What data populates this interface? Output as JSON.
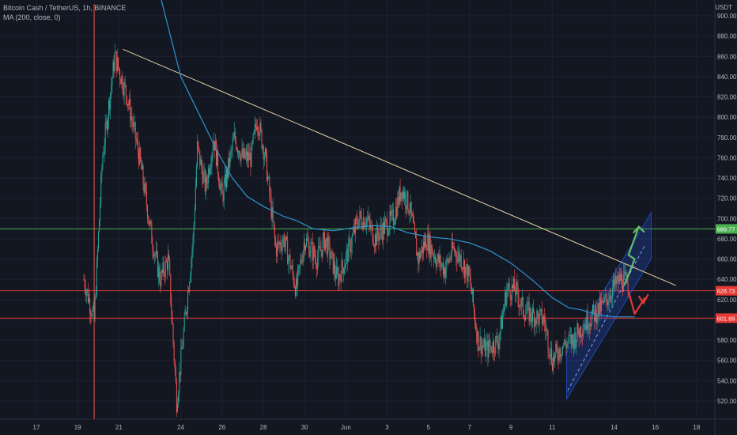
{
  "header": {
    "title": "Bitcoin Cash / TetherUS, 1h, BINANCE",
    "indicator": "MA (200, close, 0)",
    "currency": "USDT"
  },
  "colors": {
    "background": "#131722",
    "grid": "#1e2230",
    "up": "#26a69a",
    "down": "#ef5350",
    "ma": "#2f95d0",
    "trendline": "#e8d2a6",
    "green_level": "#4caf50",
    "red_level": "#e53935",
    "axis_text": "#b2b5be",
    "channel": "#2962ff"
  },
  "chart_data": {
    "type": "candlestick",
    "title": "Bitcoin Cash / TetherUS, 1h, BINANCE",
    "xlabel": "",
    "ylabel": "",
    "ylim": [
      509,
      915
    ],
    "x_ticks": [
      "17",
      "19",
      "21",
      "24",
      "26",
      "28",
      "30",
      "Jun",
      "3",
      "5",
      "7",
      "9",
      "11",
      "14",
      "16",
      "18"
    ],
    "y_ticks": [
      520,
      540,
      560,
      580,
      600,
      620,
      640,
      660,
      680,
      700,
      720,
      740,
      760,
      780,
      800,
      820,
      840,
      860,
      880,
      900
    ],
    "grid": true,
    "series": [
      {
        "name": "BCHUSDT",
        "type": "candlestick",
        "approx_path": [
          [
            19.3,
            640
          ],
          [
            19.8,
            600
          ],
          [
            20.2,
            760
          ],
          [
            20.8,
            860
          ],
          [
            21.4,
            820
          ],
          [
            22.0,
            760
          ],
          [
            22.6,
            680
          ],
          [
            23.0,
            640
          ],
          [
            23.4,
            660
          ],
          [
            23.8,
            520
          ],
          [
            24.0,
            560
          ],
          [
            24.6,
            680
          ],
          [
            24.8,
            770
          ],
          [
            25.2,
            730
          ],
          [
            25.6,
            780
          ],
          [
            26.0,
            720
          ],
          [
            26.6,
            780
          ],
          [
            27.0,
            760
          ],
          [
            27.4,
            760
          ],
          [
            27.7,
            800
          ],
          [
            28.1,
            760
          ],
          [
            28.6,
            670
          ],
          [
            29.0,
            680
          ],
          [
            29.6,
            630
          ],
          [
            30.0,
            680
          ],
          [
            30.6,
            660
          ],
          [
            31.0,
            680
          ],
          [
            31.6,
            640
          ],
          [
            32.0,
            660
          ],
          [
            32.6,
            700
          ],
          [
            33.0,
            700
          ],
          [
            33.4,
            680
          ],
          [
            33.8,
            690
          ],
          [
            34.3,
            700
          ],
          [
            34.7,
            730
          ],
          [
            35.1,
            710
          ],
          [
            35.5,
            660
          ],
          [
            35.9,
            680
          ],
          [
            36.4,
            660
          ],
          [
            36.8,
            650
          ],
          [
            37.2,
            670
          ],
          [
            37.6,
            660
          ],
          [
            38.0,
            640
          ],
          [
            38.4,
            580
          ],
          [
            38.8,
            570
          ],
          [
            39.4,
            580
          ],
          [
            39.8,
            630
          ],
          [
            40.2,
            630
          ],
          [
            40.6,
            610
          ],
          [
            41.0,
            605
          ],
          [
            41.6,
            600
          ],
          [
            42.0,
            560
          ],
          [
            42.5,
            575
          ],
          [
            43.0,
            580
          ],
          [
            43.5,
            595
          ],
          [
            44.0,
            605
          ],
          [
            44.5,
            615
          ],
          [
            44.9,
            630
          ],
          [
            45.3,
            640
          ],
          [
            45.7,
            635
          ]
        ]
      },
      {
        "name": "MA (200, close, 0)",
        "type": "line",
        "points": [
          [
            23.0,
            920
          ],
          [
            23.5,
            880
          ],
          [
            24.0,
            840
          ],
          [
            24.6,
            815
          ],
          [
            25.2,
            790
          ],
          [
            25.8,
            765
          ],
          [
            26.5,
            740
          ],
          [
            27.2,
            722
          ],
          [
            28.0,
            712
          ],
          [
            28.6,
            706
          ],
          [
            29.0,
            702
          ],
          [
            29.6,
            698
          ],
          [
            30.4,
            690
          ],
          [
            31.4,
            688
          ],
          [
            32.4,
            691
          ],
          [
            33.4,
            693
          ],
          [
            34.2,
            692
          ],
          [
            35.0,
            686
          ],
          [
            36.0,
            682
          ],
          [
            37.0,
            680
          ],
          [
            38.0,
            676
          ],
          [
            39.0,
            668
          ],
          [
            40.0,
            656
          ],
          [
            41.0,
            640
          ],
          [
            42.0,
            622
          ],
          [
            42.8,
            612
          ],
          [
            43.4,
            610
          ],
          [
            44.2,
            605
          ],
          [
            45.0,
            603
          ],
          [
            46.0,
            603
          ]
        ]
      }
    ],
    "drawings": {
      "trendline": [
        [
          21.2,
          867
        ],
        [
          48.0,
          634
        ]
      ],
      "horizontal_levels": [
        {
          "label": "689.77",
          "value": 689.77,
          "color": "green"
        },
        {
          "label": "628.73",
          "value": 628.73,
          "color": "red"
        },
        {
          "label": "601.69",
          "value": 601.69,
          "color": "red"
        }
      ],
      "channel": {
        "lower_left": [
          42.7,
          522
        ],
        "lower_right": [
          46.8,
          660
        ],
        "upper_left": [
          42.7,
          568
        ],
        "upper_right": [
          46.8,
          706
        ]
      },
      "arrows": [
        {
          "direction": "up",
          "color": "green",
          "points": [
            [
              45.5,
              634
            ],
            [
              46.0,
              660
            ],
            [
              45.7,
              664
            ],
            [
              46.2,
              692
            ]
          ]
        },
        {
          "direction": "down",
          "color": "red",
          "points": [
            [
              45.7,
              628
            ],
            [
              46.0,
              606
            ],
            [
              46.5,
              622
            ]
          ]
        }
      ]
    },
    "price_labels": [
      "689.77",
      "628.73",
      "601.69"
    ]
  }
}
